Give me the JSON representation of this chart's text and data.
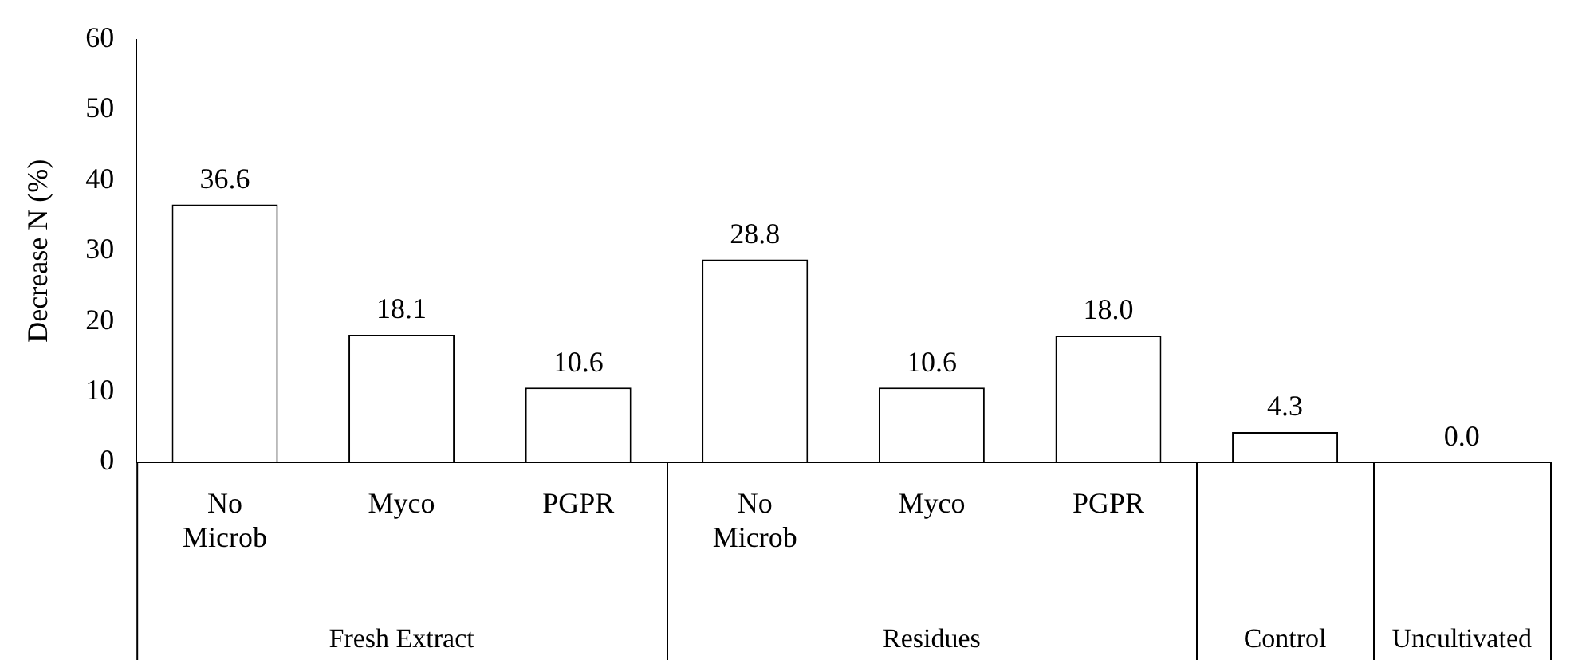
{
  "chart_data": {
    "type": "bar",
    "ylabel": "Decrease N (%)",
    "categories": [
      "No Microb",
      "Myco",
      "PGPR",
      "No Microb",
      "Myco",
      "PGPR",
      null,
      null
    ],
    "values": [
      36.6,
      18.1,
      10.6,
      28.8,
      10.6,
      18.0,
      4.3,
      0.0
    ],
    "value_labels": [
      "36.6",
      "18.1",
      "10.6",
      "28.8",
      "10.6",
      "18.0",
      "4.3",
      "0.0"
    ],
    "color": "#ffffff",
    "ylim": [
      0,
      60
    ],
    "yticks": [
      0,
      10,
      20,
      30,
      40,
      50,
      60
    ],
    "annotations": [
      "Fresh Extract",
      "Residues",
      "Control",
      "Uncultivated"
    ],
    "grid": false,
    "legend": false
  }
}
